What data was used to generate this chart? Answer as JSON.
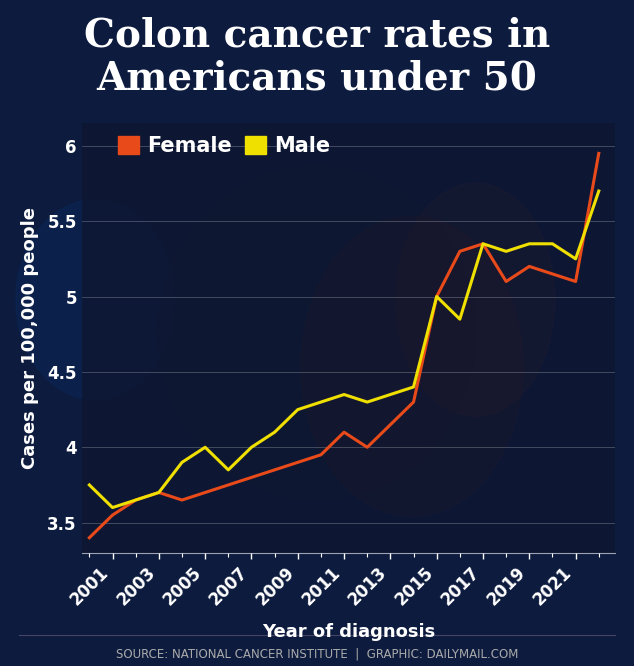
{
  "title_line1": "Colon cancer rates in",
  "title_line2": "Americans under 50",
  "xlabel": "Year of diagnosis",
  "ylabel": "Cases per 100,000 people",
  "source_text": "SOURCE: NATIONAL CANCER INSTITUTE  |  GRAPHIC: DAILYMAIL.COM",
  "years": [
    2000,
    2001,
    2002,
    2003,
    2004,
    2005,
    2006,
    2007,
    2008,
    2009,
    2010,
    2011,
    2012,
    2013,
    2014,
    2015,
    2016,
    2017,
    2018,
    2019,
    2020,
    2021,
    2022
  ],
  "female": [
    3.4,
    3.55,
    3.65,
    3.7,
    3.65,
    3.7,
    3.75,
    3.8,
    3.85,
    3.9,
    3.95,
    4.1,
    4.0,
    4.15,
    4.3,
    5.0,
    5.3,
    5.35,
    5.1,
    5.2,
    5.15,
    5.1,
    5.95
  ],
  "male": [
    3.75,
    3.6,
    3.65,
    3.7,
    3.9,
    4.0,
    3.85,
    4.0,
    4.1,
    4.25,
    4.3,
    4.35,
    4.3,
    4.35,
    4.4,
    5.0,
    4.85,
    5.35,
    5.3,
    5.35,
    5.35,
    5.25,
    5.7
  ],
  "female_color": "#e84a1a",
  "male_color": "#f0e000",
  "bg_color": "#0d1b3e",
  "plot_bg_color": "#0a1628",
  "text_color": "#ffffff",
  "grid_color": "#ffffff",
  "ylim": [
    3.3,
    6.15
  ],
  "yticks": [
    3.5,
    4.0,
    4.5,
    5.0,
    5.5,
    6.0
  ],
  "ytick_labels": [
    "3.5",
    "4",
    "4.5",
    "5",
    "5.5",
    "6"
  ],
  "xtick_labels": [
    "2001",
    "2003",
    "2005",
    "2007",
    "2009",
    "2011",
    "2013",
    "2015",
    "2017",
    "2019",
    "2021"
  ],
  "xtick_years": [
    2001,
    2003,
    2005,
    2007,
    2009,
    2011,
    2013,
    2015,
    2017,
    2019,
    2021
  ],
  "line_width": 2.2,
  "title_fontsize": 28,
  "label_fontsize": 13,
  "tick_fontsize": 12,
  "legend_fontsize": 15,
  "source_fontsize": 8.5
}
